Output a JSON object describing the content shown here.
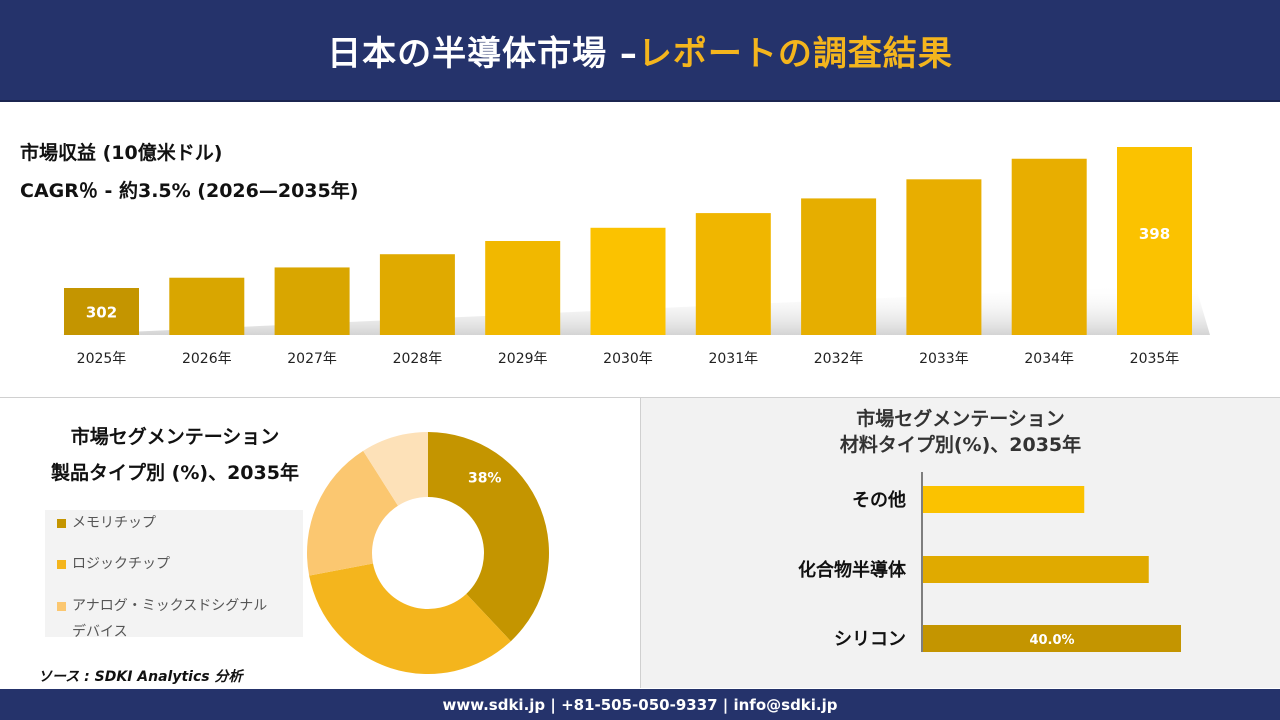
{
  "header": {
    "title_main": "日本の半導体市場 –",
    "title_accent": "レポートの調査結果"
  },
  "revenue": {
    "label": "市場収益 (10億米ドル)",
    "cagr": "CAGR％ - 約3.5% (2026—2035年)"
  },
  "chart_data": [
    {
      "type": "bar",
      "categories": [
        "2025年",
        "2026年",
        "2027年",
        "2028年",
        "2029年",
        "2030年",
        "2031年",
        "2032年",
        "2033年",
        "2034年",
        "2035年"
      ],
      "values": [
        302,
        309,
        316,
        325,
        334,
        343,
        353,
        363,
        376,
        390,
        398
      ],
      "value_labels": [
        "302",
        "",
        "",
        "",
        "",
        "",
        "",
        "",
        "",
        "",
        "398"
      ],
      "colors": [
        "#c49500",
        "#d9a600",
        "#d9a600",
        "#e0aa00",
        "#f1b800",
        "#fbc200",
        "#f0b600",
        "#e6ae00",
        "#e8ae00",
        "#e8ae00",
        "#fbc200"
      ]
    },
    {
      "type": "pie",
      "title": "市場セグメンテーション",
      "subtitle": "製品タイプ別 (%)、2035年",
      "labels": [
        "メモリチップ",
        "ロジックチップ",
        "アナログ・ミックスドシグナルデバイス"
      ],
      "legend_lines": [
        [
          "メモリチップ"
        ],
        [
          "ロジックチップ"
        ],
        [
          "アナログ・ミックスドシグナル",
          "デバイス"
        ]
      ],
      "slices": [
        {
          "name": "メモリチップ",
          "value": 38,
          "label": "38%",
          "color": "#c49500"
        },
        {
          "name": "ロジックチップ",
          "value": 34,
          "label": "",
          "color": "#f4b51d"
        },
        {
          "name": "アナログ・ミックスドシグナルデバイス",
          "value": 19,
          "label": "",
          "color": "#fbc770"
        },
        {
          "name": "",
          "value": 9,
          "label": "",
          "color": "#fde1b8"
        }
      ],
      "donut": true
    },
    {
      "type": "bar",
      "orientation": "horizontal",
      "title": "市場セグメンテーション",
      "subtitle": "材料タイプ別(%)、2035年",
      "categories": [
        "その他",
        "化合物半導体",
        "シリコン"
      ],
      "values": [
        25,
        35,
        40
      ],
      "value_labels": [
        "",
        "",
        "40.0%"
      ],
      "colors": [
        "#fbc200",
        "#e0aa00",
        "#c49500"
      ]
    }
  ],
  "source": "ソース : SDKI Analytics 分析",
  "footer": "www.sdki.jp | +81-505-050-9337 | info@sdki.jp"
}
